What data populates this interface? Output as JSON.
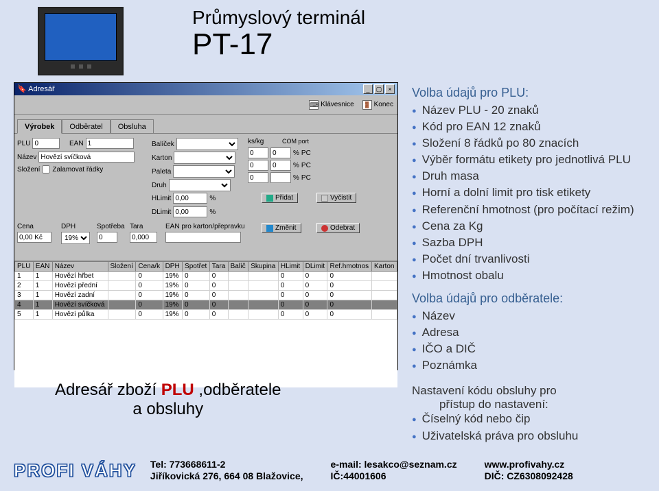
{
  "header": {
    "line1": "Průmyslový terminál",
    "line2": "PT-17"
  },
  "window": {
    "title": "Adresář",
    "toolbar": {
      "klavesnice": "Klávesnice",
      "konec": "Konec"
    },
    "tabs": {
      "vyrobek": "Výrobek",
      "odberatel": "Odběratel",
      "obsluha": "Obsluha"
    },
    "labels": {
      "plu": "PLU",
      "ean": "EAN",
      "nazev": "Název",
      "slozeni": "Složení",
      "zalamovat": "Zalamovat řádky",
      "balicek": "Balíček",
      "karton": "Karton",
      "paleta": "Paleta",
      "druh": "Druh",
      "hlimit": "HLimit",
      "dlimit": "DLimit",
      "cena": "Cena",
      "dph": "DPH",
      "spotreba": "Spotřeba",
      "tara": "Tara",
      "ean_prepravka": "EAN pro karton/přepravku",
      "ks_kg": "ks/kg",
      "com_port": "COM port",
      "kc": "0,00 Kč",
      "pct": "19%"
    },
    "values": {
      "plu": "0",
      "ean": "1",
      "nazev": "Hovězí svíčková",
      "slozeni": "",
      "hlimit": "0,00",
      "dlimit": "0,00",
      "cena": "",
      "spotreba": "0",
      "tara": "0,000",
      "ean_prepr": "",
      "com1": "0",
      "com2": "0",
      "com3": "0",
      "pc": "PC",
      "pct": "%"
    },
    "buttons": {
      "pridat": "Přidat",
      "vycistit": "Vyčistit",
      "zmenit": "Změnit",
      "odebrat": "Odebrat"
    },
    "grid": {
      "headers": [
        "PLU",
        "EAN",
        "Název",
        "Složení",
        "Cena/k",
        "DPH",
        "Spotřet",
        "Tara",
        "Balíč",
        "Skupina",
        "HLimit",
        "DLimit",
        "Ref.hmotnos",
        "Karton"
      ],
      "rows": [
        [
          "1",
          "1",
          "Hovězí hřbet",
          "",
          "0",
          "19%",
          "0",
          "0",
          "",
          "",
          "0",
          "0",
          "0",
          ""
        ],
        [
          "2",
          "1",
          "Hovězí přední",
          "",
          "0",
          "19%",
          "0",
          "0",
          "",
          "",
          "0",
          "0",
          "0",
          ""
        ],
        [
          "3",
          "1",
          "Hovězí zadní",
          "",
          "0",
          "19%",
          "0",
          "0",
          "",
          "",
          "0",
          "0",
          "0",
          ""
        ],
        [
          "4",
          "1",
          "Hovězí svíčková",
          "",
          "0",
          "19%",
          "0",
          "0",
          "",
          "",
          "0",
          "0",
          "0",
          ""
        ],
        [
          "5",
          "1",
          "Hovězí půlka",
          "",
          "0",
          "19%",
          "0",
          "0",
          "",
          "",
          "0",
          "0",
          "0",
          ""
        ]
      ],
      "selected_index": 3
    }
  },
  "right": {
    "h1": "Volba údajů pro PLU:",
    "list1": [
      "Název PLU - 20 znaků",
      "Kód pro EAN 12 znaků",
      "Složení 8 řádků po 80 znacích",
      "Výběr formátu etikety pro jednotlivá PLU",
      "Druh masa",
      "Horní a dolní limit pro tisk etikety",
      "Referenční hmotnost (pro počítací režim)",
      "Cena za Kg",
      "Sazba DPH",
      "Počet dní trvanlivosti",
      "Hmotnost obalu"
    ],
    "h2": "Volba údajů pro odběratele:",
    "list2": [
      "Název",
      "Adresa",
      "IČO a DIČ",
      "Poznámka"
    ],
    "h3a": "Nastavení kódu obsluhy pro",
    "h3b": "přístup do nastavení:",
    "list3": [
      "Číselný kód nebo čip",
      "Uživatelská práva pro obsluhu"
    ]
  },
  "section_title": {
    "line1a": "Adresář zboží ",
    "line1b": "PLU",
    "line1c": " ,odběratele",
    "line2": "a obsluhy"
  },
  "footer": {
    "logo": "PROFI VÁHY",
    "col1a": "Tel: 773668611-2",
    "col1b": "Jiříkovická 276, 664 08 Blažovice,",
    "col2a": "e-mail: lesakco@seznam.cz",
    "col2b": "IČ:44001606",
    "col3a": "www.profivahy.cz",
    "col3b": "DIČ: CZ6308092428"
  }
}
